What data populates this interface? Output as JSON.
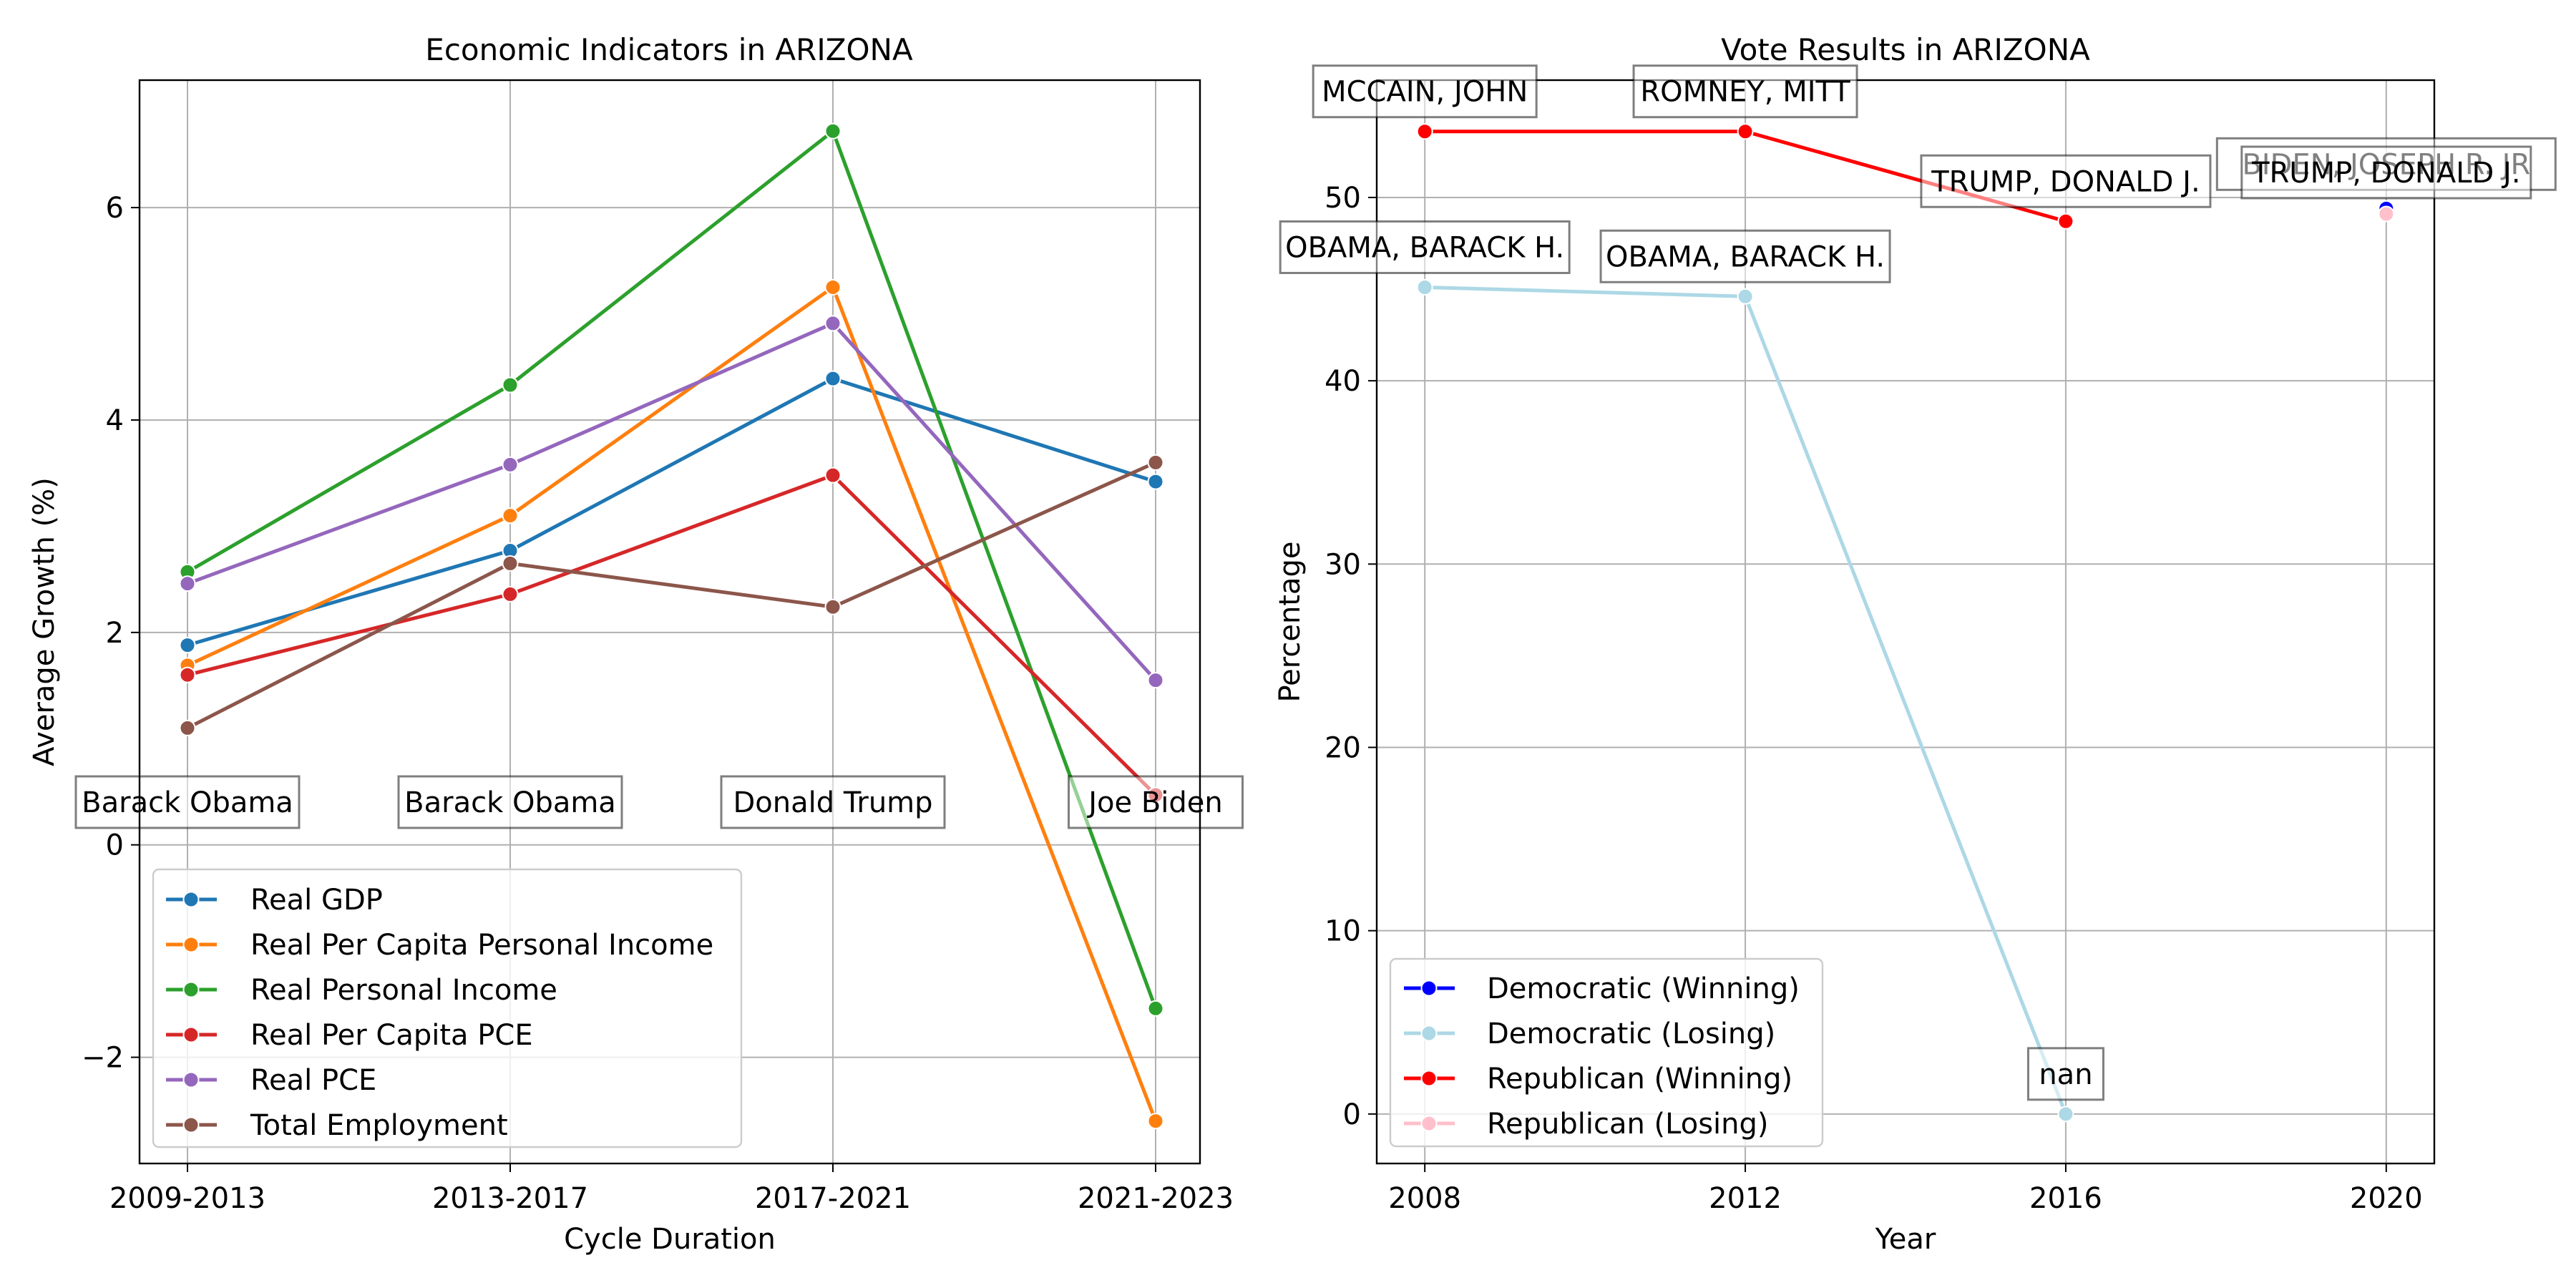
{
  "chart_data": [
    {
      "type": "line",
      "title": "Economic Indicators in ARIZONA",
      "xlabel": "Cycle Duration",
      "ylabel": "Average Growth (%)",
      "categories": [
        "2009-2013",
        "2013-2017",
        "2017-2021",
        "2021-2023"
      ],
      "ylim": [
        -3.0,
        7.2
      ],
      "yticks": [
        -2,
        0,
        2,
        4,
        6
      ],
      "ytick_labels": [
        "−2",
        "0",
        "2",
        "4",
        "6"
      ],
      "grid": true,
      "legend_position": "lower-left",
      "series": [
        {
          "name": "Real GDP",
          "color": "#1f77b4",
          "values": [
            1.88,
            2.77,
            4.39,
            3.42
          ]
        },
        {
          "name": "Real Per Capita Personal Income",
          "color": "#ff7f0e",
          "values": [
            1.69,
            3.1,
            5.25,
            -2.6
          ]
        },
        {
          "name": "Real Personal Income",
          "color": "#2ca02c",
          "values": [
            2.57,
            4.33,
            6.72,
            -1.54
          ]
        },
        {
          "name": "Real Per Capita PCE",
          "color": "#d62728",
          "values": [
            1.6,
            2.36,
            3.48,
            0.47
          ]
        },
        {
          "name": "Real PCE",
          "color": "#9467bd",
          "values": [
            2.46,
            3.58,
            4.91,
            1.55
          ]
        },
        {
          "name": "Total Employment",
          "color": "#8c564b",
          "values": [
            1.1,
            2.65,
            2.24,
            3.6
          ]
        }
      ],
      "annotations": [
        "Barack Obama",
        "Barack Obama",
        "Donald Trump",
        "Joe Biden"
      ]
    },
    {
      "type": "line",
      "title": "Vote Results in ARIZONA",
      "xlabel": "Year",
      "ylabel": "Percentage",
      "x": [
        2008,
        2012,
        2016,
        2020
      ],
      "xticks": [
        "2008",
        "2012",
        "2016",
        "2020"
      ],
      "yticks": [
        0,
        10,
        20,
        30,
        40,
        50
      ],
      "xlim": [
        2007.4,
        2020.6
      ],
      "ylim": [
        -2.7,
        56.4
      ],
      "grid": true,
      "legend_position": "lower-left",
      "series": [
        {
          "name": "Democratic (Winning)",
          "color": "#0000ff",
          "x": [
            2020
          ],
          "values": [
            49.4
          ]
        },
        {
          "name": "Democratic (Losing)",
          "color": "#add8e6",
          "x": [
            2008,
            2012,
            2016
          ],
          "values": [
            45.1,
            44.6,
            0.0
          ]
        },
        {
          "name": "Republican (Winning)",
          "color": "#ff0000",
          "x": [
            2008,
            2012,
            2016
          ],
          "values": [
            53.6,
            53.6,
            48.7
          ]
        },
        {
          "name": "Republican (Losing)",
          "color": "#ffc0cb",
          "x": [
            2020
          ],
          "values": [
            49.1
          ]
        }
      ],
      "annotations": [
        {
          "text": "MCCAIN, JOHN",
          "x": 2008,
          "y": 53.6
        },
        {
          "text": "ROMNEY, MITT",
          "x": 2012,
          "y": 53.6
        },
        {
          "text": "TRUMP, DONALD J.",
          "x": 2016,
          "y": 48.7
        },
        {
          "text": "BIDEN, JOSEPH R. JR",
          "x": 2020,
          "y": 49.4
        },
        {
          "text": "OBAMA, BARACK H.",
          "x": 2008,
          "y": 45.1
        },
        {
          "text": "OBAMA, BARACK H.",
          "x": 2012,
          "y": 44.6
        },
        {
          "text": "nan",
          "x": 2016,
          "y": 0.0
        },
        {
          "text": "TRUMP, DONALD J.",
          "x": 2020,
          "y": 49.1
        }
      ]
    }
  ]
}
